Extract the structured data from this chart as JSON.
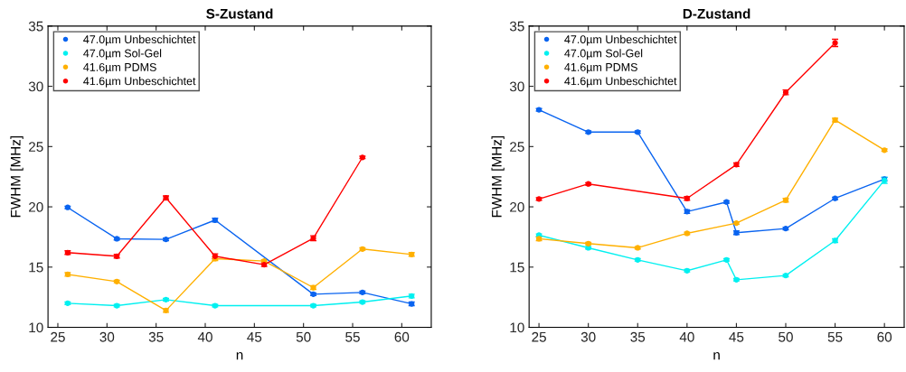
{
  "chart_data": [
    {
      "type": "line",
      "title": "S-Zustand",
      "xlabel": "n",
      "ylabel": "FWHM [MHz]",
      "xlim": [
        24,
        63
      ],
      "xticks": [
        25,
        30,
        35,
        40,
        45,
        50,
        55,
        60
      ],
      "ylim": [
        10,
        35
      ],
      "yticks": [
        10,
        15,
        20,
        25,
        30,
        35
      ],
      "grid": false,
      "legend": "top left",
      "marker": "circle",
      "line_style": "solid",
      "series": [
        {
          "name": "47.0µm Unbeschichtet",
          "color": "#0a64f0",
          "x": [
            26,
            31,
            36,
            41,
            51,
            56,
            61
          ],
          "values": [
            19.95,
            17.35,
            17.3,
            18.9,
            12.75,
            12.9,
            11.95
          ],
          "errors": [
            0.1,
            0.1,
            0.1,
            0.15,
            0.1,
            0.1,
            0.15
          ]
        },
        {
          "name": "47.0µm Sol-Gel",
          "color": "#00f0f0",
          "x": [
            26,
            31,
            36,
            41,
            51,
            56,
            61
          ],
          "values": [
            12.0,
            11.8,
            12.3,
            11.8,
            11.8,
            12.1,
            12.6
          ],
          "errors": [
            0.1,
            0.1,
            0.1,
            0.1,
            0.1,
            0.1,
            0.15
          ]
        },
        {
          "name": "41.6µm PDMS",
          "color": "#ffb000",
          "x": [
            26,
            31,
            36,
            41,
            46,
            51,
            56,
            61
          ],
          "values": [
            14.4,
            13.8,
            11.4,
            15.7,
            15.5,
            13.3,
            16.5,
            16.05
          ],
          "errors": [
            0.15,
            0.1,
            0.15,
            0.15,
            0.1,
            0.15,
            0.1,
            0.15
          ]
        },
        {
          "name": "41.6µm Unbeschichtet",
          "color": "#ff0000",
          "x": [
            26,
            31,
            36,
            41,
            46,
            51,
            56
          ],
          "values": [
            16.2,
            15.9,
            20.75,
            15.9,
            15.2,
            17.4,
            24.1
          ],
          "errors": [
            0.15,
            0.15,
            0.15,
            0.2,
            0.15,
            0.2,
            0.1
          ]
        }
      ]
    },
    {
      "type": "line",
      "title": "D-Zustand",
      "xlabel": "n",
      "ylabel": "FWHM [MHz]",
      "xlim": [
        24,
        62
      ],
      "xticks": [
        25,
        30,
        35,
        40,
        45,
        50,
        55,
        60
      ],
      "ylim": [
        10,
        35
      ],
      "yticks": [
        10,
        15,
        20,
        25,
        30,
        35
      ],
      "grid": false,
      "legend": "top left",
      "marker": "circle",
      "line_style": "solid",
      "series": [
        {
          "name": "47.0µm Unbeschichtet",
          "color": "#0a64f0",
          "x": [
            25,
            30,
            35,
            40,
            44,
            45,
            50,
            55,
            60
          ],
          "values": [
            28.05,
            26.2,
            26.2,
            19.6,
            20.4,
            17.85,
            18.2,
            20.7,
            22.3
          ],
          "errors": [
            0.1,
            0.1,
            0.1,
            0.15,
            0.1,
            0.15,
            0.1,
            0.1,
            0.15
          ]
        },
        {
          "name": "47.0µm Sol-Gel",
          "color": "#00f0f0",
          "x": [
            25,
            30,
            35,
            40,
            44,
            45,
            50,
            55,
            60
          ],
          "values": [
            17.65,
            16.6,
            15.6,
            14.7,
            15.6,
            13.95,
            14.3,
            17.2,
            22.2
          ],
          "errors": [
            0.1,
            0.1,
            0.1,
            0.1,
            0.1,
            0.1,
            0.1,
            0.15,
            0.25
          ]
        },
        {
          "name": "41.6µm PDMS",
          "color": "#ffb000",
          "x": [
            25,
            30,
            35,
            40,
            45,
            50,
            55,
            60
          ],
          "values": [
            17.35,
            16.95,
            16.6,
            17.8,
            18.65,
            20.55,
            27.2,
            24.7
          ],
          "errors": [
            0.15,
            0.1,
            0.1,
            0.1,
            0.1,
            0.15,
            0.15,
            0.1
          ]
        },
        {
          "name": "41.6µm Unbeschichtet",
          "color": "#ff0000",
          "x": [
            25,
            30,
            40,
            45,
            50,
            55
          ],
          "values": [
            20.65,
            21.9,
            20.7,
            23.5,
            29.5,
            33.6
          ],
          "errors": [
            0.1,
            0.1,
            0.15,
            0.15,
            0.2,
            0.3
          ]
        }
      ]
    }
  ]
}
